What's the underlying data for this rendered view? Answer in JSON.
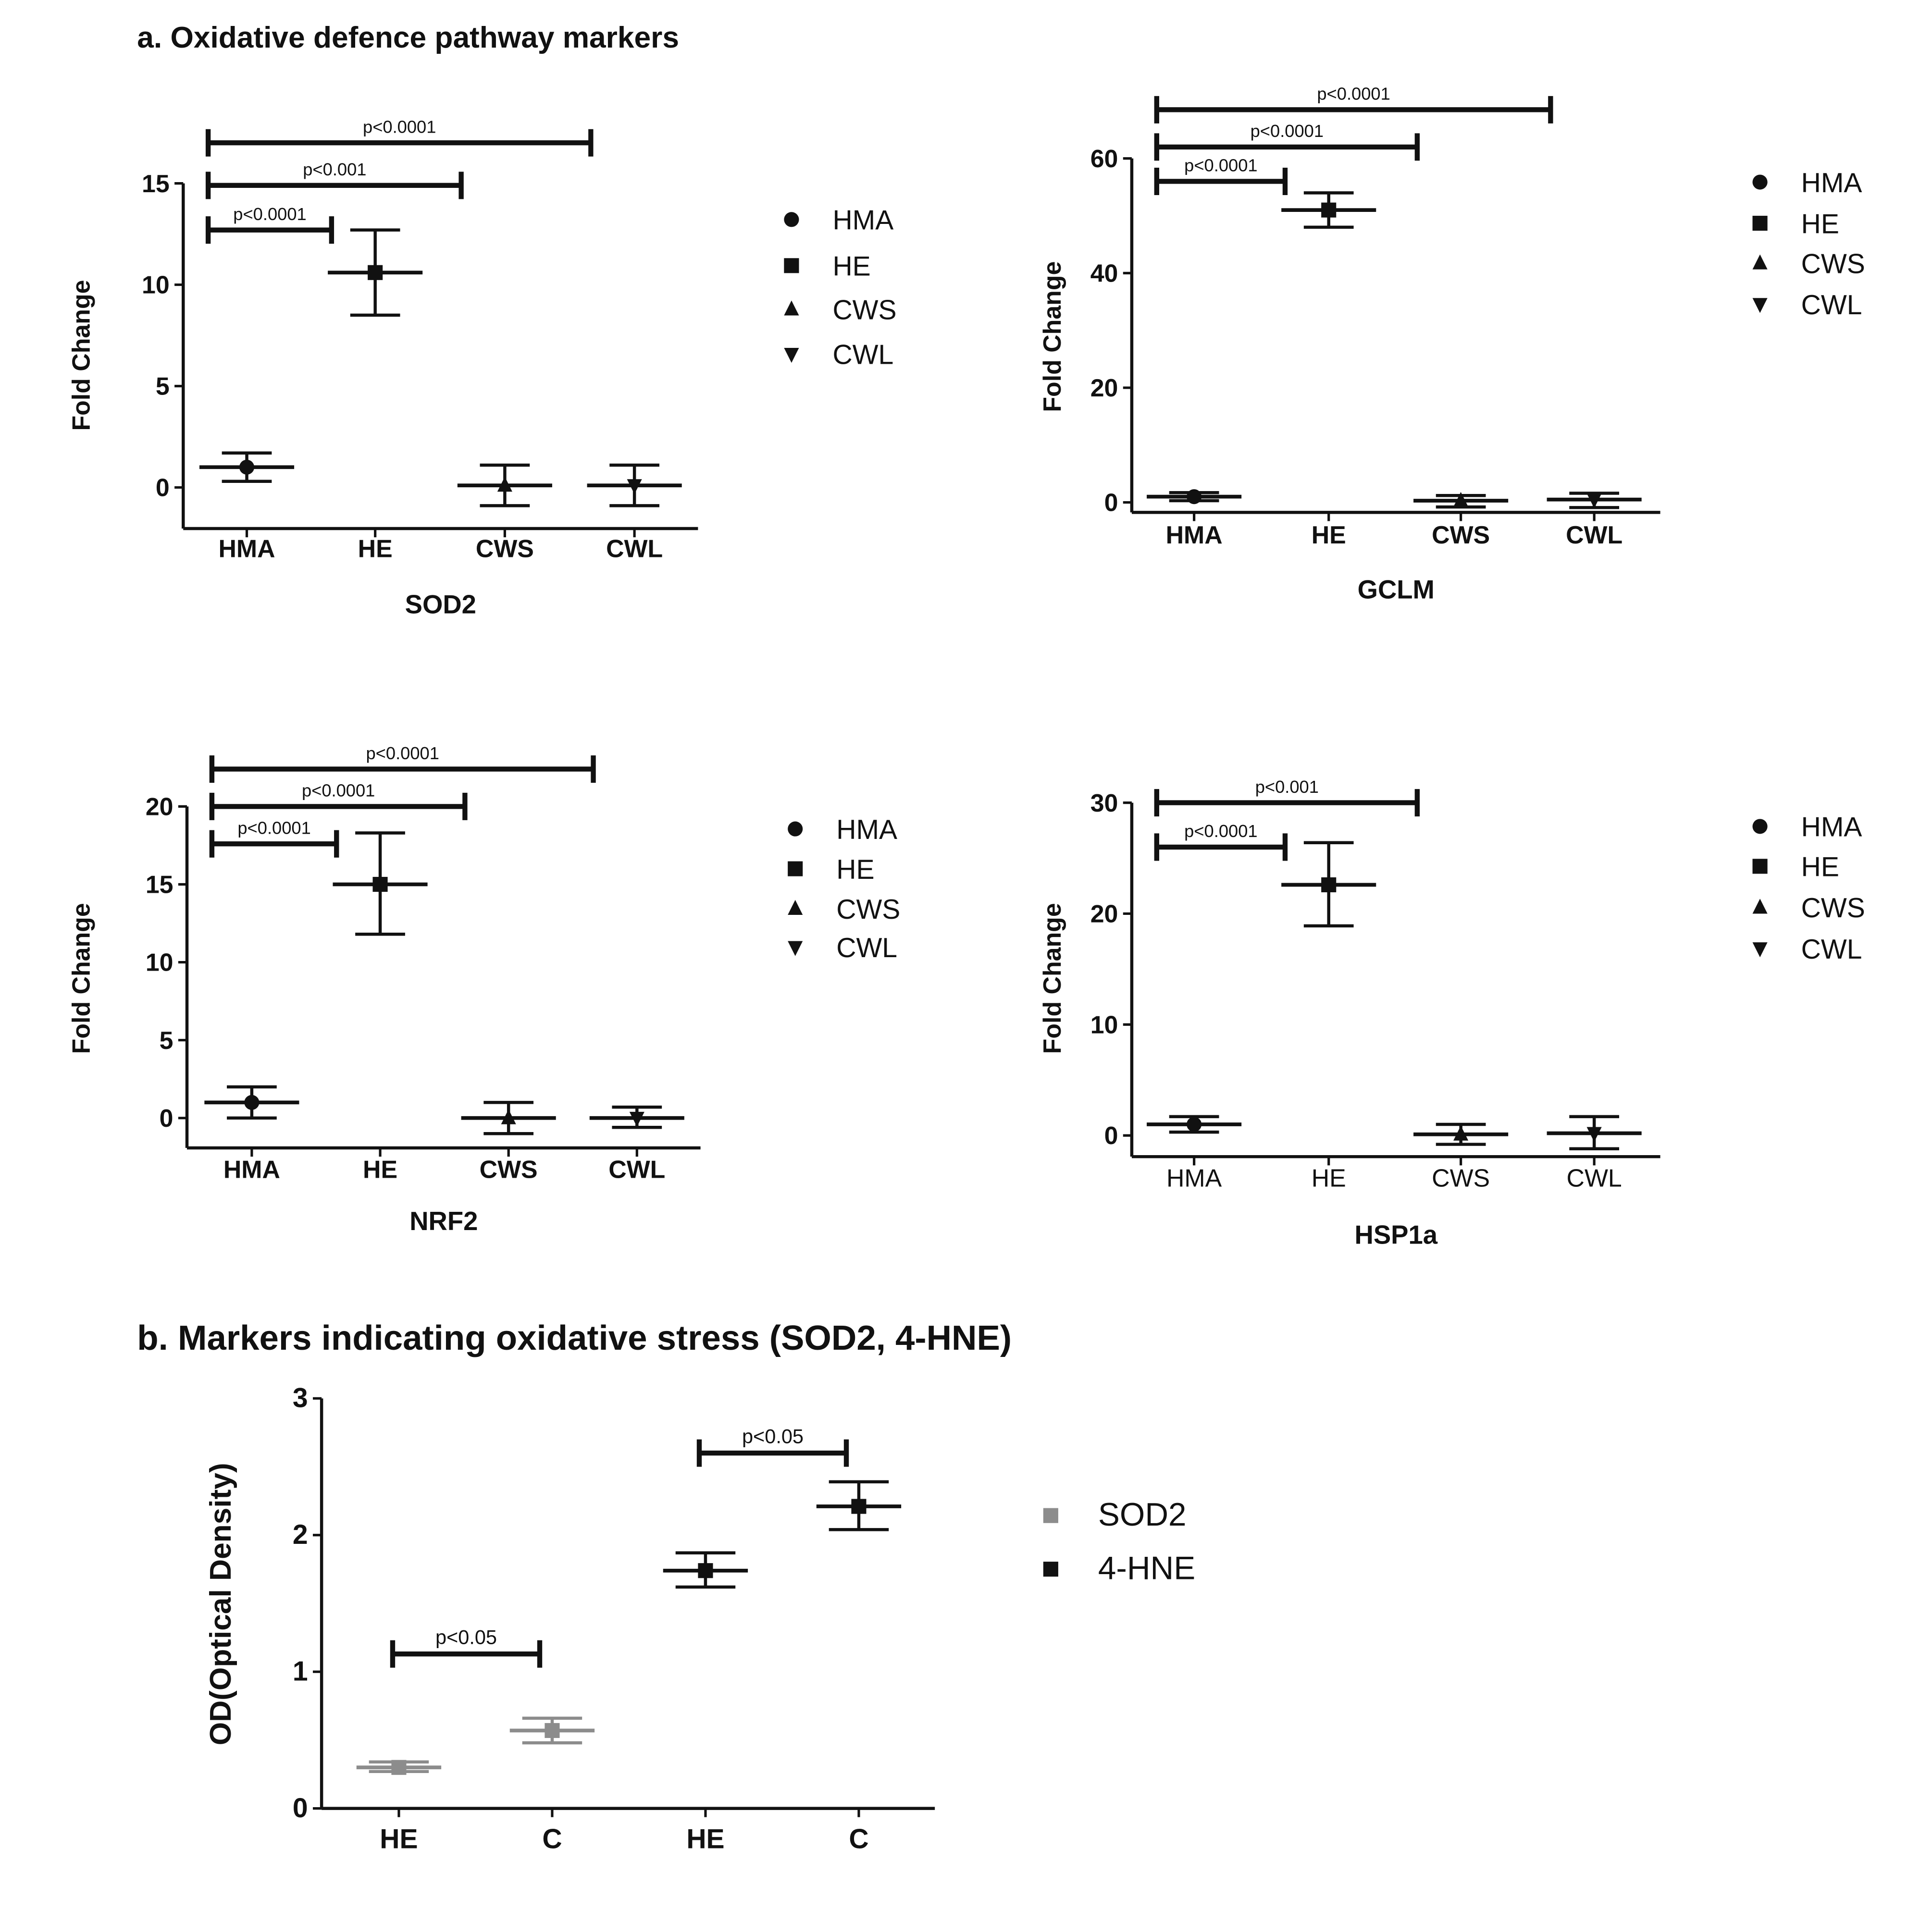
{
  "section_a_title": "a. Oxidative defence pathway markers",
  "section_b_title": "b. Markers indicating oxidative stress (SOD2, 4-HNE)",
  "chart_data": [
    {
      "type": "scatter",
      "title": "SOD2",
      "xlabel": "SOD2",
      "ylabel": "Fold Change",
      "categories": [
        "HMA",
        "HE",
        "CWS",
        "CWL"
      ],
      "markers": [
        "circle",
        "square",
        "triangle",
        "triangle-down"
      ],
      "values": [
        1.0,
        10.6,
        0.1,
        0.1
      ],
      "err_low": [
        0.3,
        8.5,
        -0.9,
        -0.9
      ],
      "err_high": [
        1.7,
        12.7,
        1.1,
        1.1
      ],
      "yticks": [
        0,
        5,
        10,
        15
      ],
      "ylim": [
        -2,
        15
      ],
      "legend": [
        "HMA",
        "HE",
        "CWS",
        "CWL"
      ],
      "legend_position": "right",
      "bold_xticks": true,
      "brackets": [
        {
          "from": 0,
          "to": 1,
          "y": 12.7,
          "label": "p<0.0001"
        },
        {
          "from": 0,
          "to": 2,
          "y": 14.9,
          "label": "p<0.001"
        },
        {
          "from": 0,
          "to": 3,
          "y": 17.0,
          "label": "p<0.0001"
        }
      ]
    },
    {
      "type": "scatter",
      "title": "GCLM",
      "xlabel": "GCLM",
      "ylabel": "Fold Change",
      "categories": [
        "HMA",
        "HE",
        "CWS",
        "CWL"
      ],
      "markers": [
        "circle",
        "square",
        "triangle",
        "triangle-down"
      ],
      "values": [
        1.0,
        51.0,
        0.3,
        0.5
      ],
      "err_low": [
        0.3,
        48.0,
        -0.8,
        -0.9
      ],
      "err_high": [
        1.7,
        54.0,
        1.2,
        1.6
      ],
      "yticks": [
        0,
        20,
        40,
        60
      ],
      "ylim": [
        -1.7,
        60
      ],
      "legend": [
        "HMA",
        "HE",
        "CWS",
        "CWL"
      ],
      "legend_position": "right",
      "bold_xticks": true,
      "brackets": [
        {
          "from": 0,
          "to": 1,
          "y": 56,
          "label": "p<0.0001"
        },
        {
          "from": 0,
          "to": 2,
          "y": 62,
          "label": "p<0.0001"
        },
        {
          "from": 0,
          "to": 3,
          "y": 68.5,
          "label": "p<0.0001"
        }
      ]
    },
    {
      "type": "scatter",
      "title": "NRF2",
      "xlabel": "NRF2",
      "ylabel": "Fold Change",
      "categories": [
        "HMA",
        "HE",
        "CWS",
        "CWL"
      ],
      "markers": [
        "circle",
        "square",
        "triangle",
        "triangle-down"
      ],
      "values": [
        1.0,
        15.0,
        0.0,
        0.0
      ],
      "err_low": [
        0.0,
        11.8,
        -1.0,
        -0.6
      ],
      "err_high": [
        2.0,
        18.3,
        1.0,
        0.7
      ],
      "yticks": [
        0,
        5,
        10,
        15,
        20
      ],
      "ylim": [
        -1.9,
        20
      ],
      "legend": [
        "HMA",
        "HE",
        "CWS",
        "CWL"
      ],
      "legend_position": "right",
      "bold_xticks": true,
      "brackets": [
        {
          "from": 0,
          "to": 1,
          "y": 17.6,
          "label": "p<0.0001"
        },
        {
          "from": 0,
          "to": 2,
          "y": 20.0,
          "label": "p<0.0001"
        },
        {
          "from": 0,
          "to": 3,
          "y": 22.4,
          "label": "p<0.0001"
        }
      ]
    },
    {
      "type": "scatter",
      "title": "HSP1a",
      "xlabel": "HSP1a",
      "ylabel": "Fold Change",
      "categories": [
        "HMA",
        "HE",
        "CWS",
        "CWL"
      ],
      "markers": [
        "circle",
        "square",
        "triangle",
        "triangle-down"
      ],
      "values": [
        1.0,
        22.6,
        0.1,
        0.2
      ],
      "err_low": [
        0.3,
        18.9,
        -0.8,
        -1.2
      ],
      "err_high": [
        1.7,
        26.4,
        1.0,
        1.7
      ],
      "yticks": [
        0,
        10,
        20,
        30
      ],
      "ylim": [
        -1.9,
        30
      ],
      "legend": [
        "HMA",
        "HE",
        "CWS",
        "CWL"
      ],
      "legend_position": "right",
      "bold_xticks": false,
      "brackets": [
        {
          "from": 0,
          "to": 1,
          "y": 26.0,
          "label": "p<0.0001"
        },
        {
          "from": 0,
          "to": 2,
          "y": 30.0,
          "label": "p<0.001"
        }
      ]
    },
    {
      "type": "scatter",
      "title": "Markers indicating oxidative stress (SOD2, 4-HNE)",
      "xlabel": "",
      "ylabel": "OD(Optical Density)",
      "categories": [
        "HE",
        "C",
        "HE",
        "C"
      ],
      "markers": [
        "square",
        "square",
        "square",
        "square"
      ],
      "colors": [
        "#8c8c8c",
        "#8c8c8c",
        "#111111",
        "#111111"
      ],
      "values": [
        0.3,
        0.57,
        1.74,
        2.21
      ],
      "err_low": [
        0.27,
        0.48,
        1.62,
        2.04
      ],
      "err_high": [
        0.34,
        0.66,
        1.87,
        2.39
      ],
      "yticks": [
        0,
        1,
        2,
        3
      ],
      "ylim": [
        0,
        3
      ],
      "legend": [
        "SOD2",
        "4-HNE"
      ],
      "legend_colors": [
        "#8c8c8c",
        "#111111"
      ],
      "legend_position": "right",
      "bold_xticks": true,
      "brackets": [
        {
          "from": 0,
          "to": 1,
          "y": 1.13,
          "label": "p<0.05"
        },
        {
          "from": 2,
          "to": 3,
          "y": 2.6,
          "label": "p<0.05"
        }
      ]
    }
  ]
}
